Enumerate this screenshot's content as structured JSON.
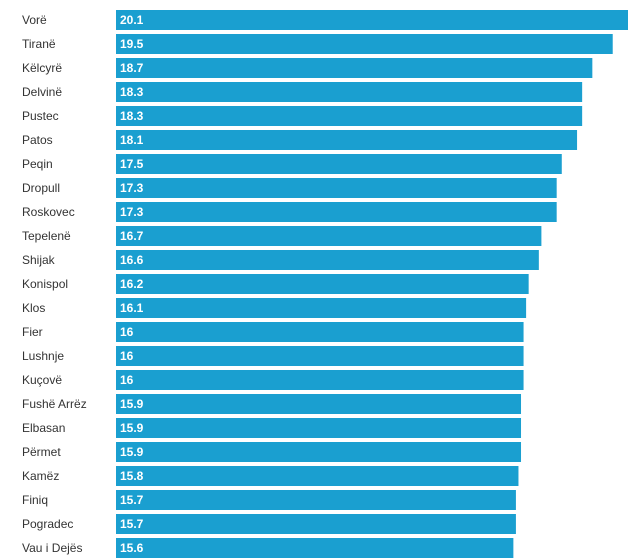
{
  "chart_data": {
    "type": "bar",
    "orientation": "horizontal",
    "title": "",
    "xlabel": "",
    "ylabel": "",
    "xlim": [
      0,
      20.1
    ],
    "grid": false,
    "bar_color": "#1a9fd0",
    "value_label_color": "#ffffff",
    "category_label_color": "#333333",
    "categories": [
      "Vorë",
      "Tiranë",
      "Këlcyrë",
      "Delvinë",
      "Pustec",
      "Patos",
      "Peqin",
      "Dropull",
      "Roskovec",
      "Tepelenë",
      "Shijak",
      "Konispol",
      "Klos",
      "Fier",
      "Lushnje",
      "Kuçovë",
      "Fushë Arrëz",
      "Elbasan",
      "Përmet",
      "Kamëz",
      "Finiq",
      "Pogradec",
      "Vau i Dejës"
    ],
    "values": [
      20.1,
      19.5,
      18.7,
      18.3,
      18.3,
      18.1,
      17.5,
      17.3,
      17.3,
      16.7,
      16.6,
      16.2,
      16.1,
      16,
      16,
      16,
      15.9,
      15.9,
      15.9,
      15.8,
      15.7,
      15.7,
      15.6
    ],
    "value_labels": [
      "20.1",
      "19.5",
      "18.7",
      "18.3",
      "18.3",
      "18.1",
      "17.5",
      "17.3",
      "17.3",
      "16.7",
      "16.6",
      "16.2",
      "16.1",
      "16",
      "16",
      "16",
      "15.9",
      "15.9",
      "15.9",
      "15.8",
      "15.7",
      "15.7",
      "15.6"
    ]
  }
}
